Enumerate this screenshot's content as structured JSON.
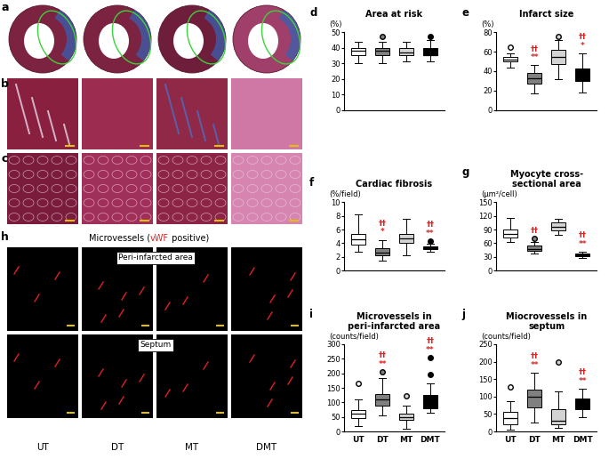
{
  "chart_data": [
    {
      "type": "box",
      "panel": "d",
      "title": "Area at risk",
      "y_label": "(%)",
      "categories": [
        "UT",
        "DT",
        "MT",
        "DMT"
      ],
      "tick_labels": "y",
      "colors": [
        "#ffffff",
        "#808080",
        "#d3d3d3",
        "#000000"
      ],
      "ylim": [
        0,
        50
      ],
      "yticks": [
        0,
        10,
        20,
        30,
        40,
        50
      ],
      "boxes": [
        {
          "whislo": 30,
          "q1": 35,
          "med": 38,
          "q3": 40,
          "whishi": 44,
          "fliers": []
        },
        {
          "whislo": 30,
          "q1": 35,
          "med": 38,
          "q3": 40,
          "whishi": 44,
          "fliers": [
            47
          ]
        },
        {
          "whislo": 31,
          "q1": 35,
          "med": 37,
          "q3": 40,
          "whishi": 44,
          "fliers": []
        },
        {
          "whislo": 31,
          "q1": 35,
          "med": 35,
          "q3": 40,
          "whishi": 45,
          "fliers": [
            47
          ]
        }
      ],
      "significance": [
        [],
        [],
        [],
        []
      ]
    },
    {
      "type": "box",
      "panel": "e",
      "title": "Infarct size",
      "y_label": "(%)",
      "categories": [
        "UT",
        "DT",
        "MT",
        "DMT"
      ],
      "tick_labels": "y",
      "colors": [
        "#ffffff",
        "#808080",
        "#d3d3d3",
        "#000000"
      ],
      "ylim": [
        0,
        80
      ],
      "yticks": [
        0,
        20,
        40,
        60,
        80
      ],
      "boxes": [
        {
          "whislo": 44,
          "q1": 50,
          "med": 52,
          "q3": 55,
          "whishi": 58,
          "fliers": [
            65
          ]
        },
        {
          "whislo": 17,
          "q1": 27,
          "med": 33,
          "q3": 38,
          "whishi": 46,
          "fliers": []
        },
        {
          "whislo": 32,
          "q1": 47,
          "med": 55,
          "q3": 62,
          "whishi": 72,
          "fliers": [
            76
          ]
        },
        {
          "whislo": 18,
          "q1": 30,
          "med": 35,
          "q3": 43,
          "whishi": 58,
          "fliers": []
        }
      ],
      "significance": [
        [],
        [
          "††",
          "**"
        ],
        [],
        [
          "††",
          "*"
        ]
      ]
    },
    {
      "type": "box",
      "panel": "f",
      "title": "Cardiac fibrosis",
      "y_label": "(%/field)",
      "categories": [
        "UT",
        "DT",
        "MT",
        "DMT"
      ],
      "tick_labels": "y",
      "colors": [
        "#ffffff",
        "#808080",
        "#d3d3d3",
        "#000000"
      ],
      "ylim": [
        0,
        10
      ],
      "yticks": [
        0,
        2,
        4,
        6,
        8,
        10
      ],
      "boxes": [
        {
          "whislo": 2.8,
          "q1": 3.8,
          "med": 4.6,
          "q3": 5.3,
          "whishi": 8.2,
          "fliers": []
        },
        {
          "whislo": 1.5,
          "q1": 2.2,
          "med": 2.7,
          "q3": 3.3,
          "whishi": 4.5,
          "fliers": []
        },
        {
          "whislo": 2.2,
          "q1": 4.0,
          "med": 4.7,
          "q3": 5.3,
          "whishi": 7.6,
          "fliers": []
        },
        {
          "whislo": 2.8,
          "q1": 3.1,
          "med": 3.3,
          "q3": 3.5,
          "whishi": 3.9,
          "fliers": [
            4.3
          ]
        }
      ],
      "significance": [
        [],
        [
          "††",
          "*"
        ],
        [],
        [
          "††",
          "**"
        ]
      ]
    },
    {
      "type": "box",
      "panel": "g",
      "title": "Myocyte cross-\nsectional area",
      "y_label": "(μm²/cell)",
      "categories": [
        "UT",
        "DT",
        "MT",
        "DMT"
      ],
      "tick_labels": "y",
      "colors": [
        "#ffffff",
        "#808080",
        "#d3d3d3",
        "#000000"
      ],
      "ylim": [
        0,
        150
      ],
      "yticks": [
        0,
        30,
        60,
        90,
        120,
        150
      ],
      "boxes": [
        {
          "whislo": 62,
          "q1": 73,
          "med": 80,
          "q3": 90,
          "whishi": 115,
          "fliers": []
        },
        {
          "whislo": 37,
          "q1": 43,
          "med": 48,
          "q3": 55,
          "whishi": 63,
          "fliers": [
            71
          ]
        },
        {
          "whislo": 78,
          "q1": 88,
          "med": 96,
          "q3": 105,
          "whishi": 113,
          "fliers": []
        },
        {
          "whislo": 28,
          "q1": 31,
          "med": 33,
          "q3": 37,
          "whishi": 42,
          "fliers": []
        }
      ],
      "significance": [
        [],
        [
          "††"
        ],
        [],
        [
          "††",
          "**"
        ]
      ]
    },
    {
      "type": "box",
      "panel": "i",
      "title": "Microvessels in\nperi-infarcted area",
      "y_label": "(counts/field)",
      "categories": [
        "UT",
        "DT",
        "MT",
        "DMT"
      ],
      "colors": [
        "#ffffff",
        "#808080",
        "#d3d3d3",
        "#000000"
      ],
      "ylim": [
        0,
        300
      ],
      "yticks": [
        0,
        50,
        100,
        150,
        200,
        250,
        300
      ],
      "boxes": [
        {
          "whislo": 20,
          "q1": 45,
          "med": 60,
          "q3": 75,
          "whishi": 110,
          "fliers": [
            165
          ]
        },
        {
          "whislo": 55,
          "q1": 90,
          "med": 110,
          "q3": 130,
          "whishi": 185,
          "fliers": [
            205
          ]
        },
        {
          "whislo": 10,
          "q1": 40,
          "med": 50,
          "q3": 60,
          "whishi": 90,
          "fliers": [
            123
          ]
        },
        {
          "whislo": 65,
          "q1": 80,
          "med": 100,
          "q3": 125,
          "whishi": 165,
          "fliers": [
            195,
            255
          ]
        }
      ],
      "significance": [
        [],
        [
          "††",
          "**"
        ],
        [],
        [
          "††",
          "**"
        ]
      ]
    },
    {
      "type": "box",
      "panel": "j",
      "title": "Miocrovessels in\nseptum",
      "y_label": "(counts/field)",
      "categories": [
        "UT",
        "DT",
        "MT",
        "DMT"
      ],
      "colors": [
        "#ffffff",
        "#808080",
        "#d3d3d3",
        "#000000"
      ],
      "ylim": [
        0,
        250
      ],
      "yticks": [
        0,
        50,
        100,
        150,
        200,
        250
      ],
      "boxes": [
        {
          "whislo": 5,
          "q1": 20,
          "med": 38,
          "q3": 55,
          "whishi": 88,
          "fliers": [
            128
          ]
        },
        {
          "whislo": 25,
          "q1": 70,
          "med": 100,
          "q3": 120,
          "whishi": 168,
          "fliers": []
        },
        {
          "whislo": 10,
          "q1": 20,
          "med": 30,
          "q3": 65,
          "whishi": 115,
          "fliers": [
            200
          ]
        },
        {
          "whislo": 42,
          "q1": 65,
          "med": 85,
          "q3": 95,
          "whishi": 122,
          "fliers": []
        }
      ],
      "significance": [
        [],
        [
          "††",
          "**"
        ],
        [],
        [
          "††",
          "**"
        ]
      ]
    }
  ],
  "images": {
    "panel_labels": [
      "a",
      "b",
      "c",
      "h"
    ],
    "h_title": "Microvessels (vWF positive)",
    "h_highlight": "vWF",
    "h_rows": [
      "Peri-infarcted area",
      "Septum"
    ],
    "groups": [
      "UT",
      "DT",
      "MT",
      "DMT"
    ]
  }
}
